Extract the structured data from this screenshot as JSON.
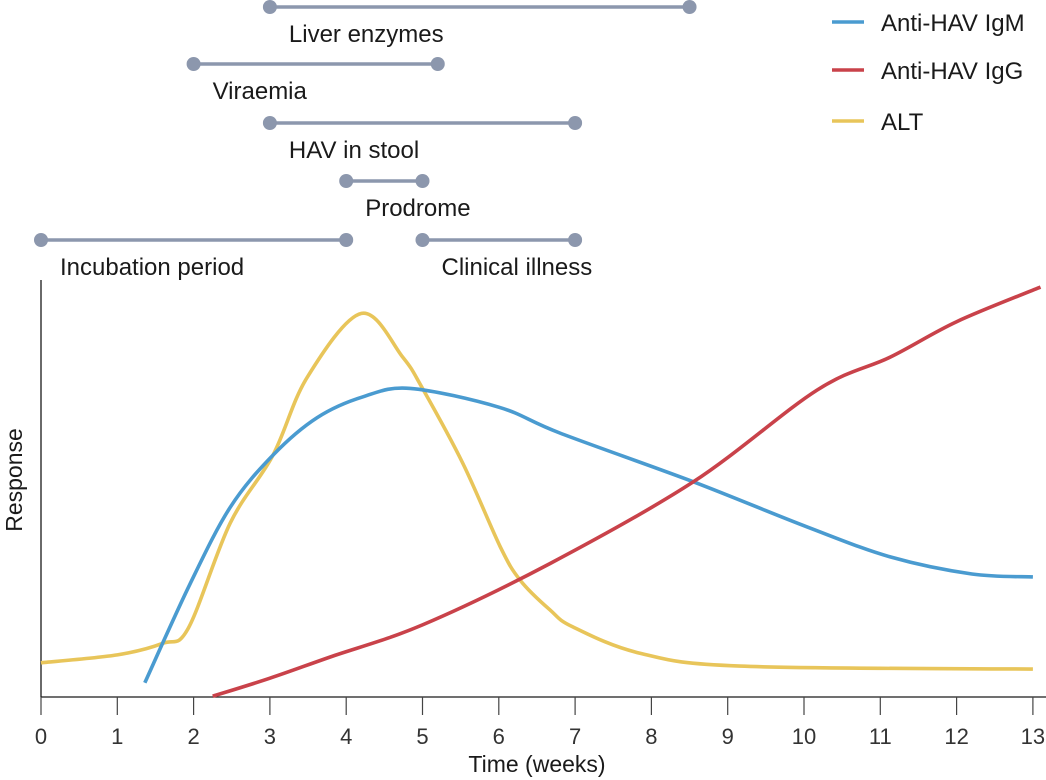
{
  "chart_data": {
    "type": "line",
    "title": "",
    "xlabel": "Time (weeks)",
    "ylabel": "Response",
    "xlim": [
      0,
      13
    ],
    "ylim": [
      0,
      100
    ],
    "x_ticks": [
      0,
      1,
      2,
      3,
      4,
      5,
      6,
      7,
      8,
      9,
      10,
      11,
      12,
      13
    ],
    "x_tick_labels": [
      "0",
      "1",
      "2",
      "3",
      "4",
      "5",
      "6",
      "7",
      "8",
      "9",
      "10",
      "11",
      "12",
      "13"
    ],
    "y_ticks": [],
    "grid": false,
    "legend": {
      "placement": "top-right",
      "entries": [
        "Anti-HAV IgM",
        "Anti-HAV IgG",
        "ALT"
      ]
    },
    "series": [
      {
        "name": "Anti-HAV IgM",
        "color": "#4a9bd0",
        "points": [
          [
            1.36,
            3.4
          ],
          [
            1.95,
            27
          ],
          [
            2.48,
            45.5
          ],
          [
            3.04,
            58
          ],
          [
            3.62,
            67
          ],
          [
            4.22,
            72
          ],
          [
            4.84,
            74
          ],
          [
            6.0,
            69.5
          ],
          [
            6.8,
            63.3
          ],
          [
            8.55,
            51.6
          ],
          [
            10.04,
            40.8
          ],
          [
            11.13,
            33.6
          ],
          [
            12.2,
            29.5
          ],
          [
            13.0,
            28.8
          ]
        ]
      },
      {
        "name": "Anti-HAV IgG",
        "color": "#c9424a",
        "points": [
          [
            2.25,
            0.2
          ],
          [
            3.0,
            4.5
          ],
          [
            3.79,
            9.6
          ],
          [
            5.0,
            17.3
          ],
          [
            6.67,
            32
          ],
          [
            8.55,
            51.6
          ],
          [
            10.17,
            73.6
          ],
          [
            11.13,
            81.5
          ],
          [
            12.0,
            90
          ],
          [
            13.1,
            98.3
          ]
        ]
      },
      {
        "name": "ALT",
        "color": "#e8c55a",
        "points": [
          [
            0,
            8.2
          ],
          [
            1.0,
            10.1
          ],
          [
            1.6,
            12.9
          ],
          [
            1.93,
            16.5
          ],
          [
            2.48,
            41.7
          ],
          [
            3.04,
            58
          ],
          [
            3.49,
            76.7
          ],
          [
            4.2,
            92
          ],
          [
            4.74,
            81.5
          ],
          [
            5.0,
            74
          ],
          [
            5.53,
            56
          ],
          [
            6.02,
            36
          ],
          [
            6.28,
            28
          ],
          [
            6.67,
            20.9
          ],
          [
            6.97,
            16.8
          ],
          [
            7.85,
            10.5
          ],
          [
            9.16,
            7.4
          ],
          [
            13.0,
            6.7
          ]
        ]
      }
    ],
    "ranges": [
      {
        "label": "Liver enzymes",
        "start": 3,
        "end": 8.5,
        "color": "#8c97ad"
      },
      {
        "label": "Viraemia",
        "start": 2,
        "end": 5.2,
        "color": "#8c97ad"
      },
      {
        "label": "HAV in stool",
        "start": 3,
        "end": 7,
        "color": "#8c97ad"
      },
      {
        "label": "Prodrome",
        "start": 4,
        "end": 5,
        "color": "#8c97ad"
      },
      {
        "label": "Incubation period",
        "start": 0,
        "end": 4,
        "color": "#8c97ad"
      },
      {
        "label": "Clinical illness",
        "start": 5,
        "end": 7,
        "color": "#8c97ad"
      }
    ]
  }
}
